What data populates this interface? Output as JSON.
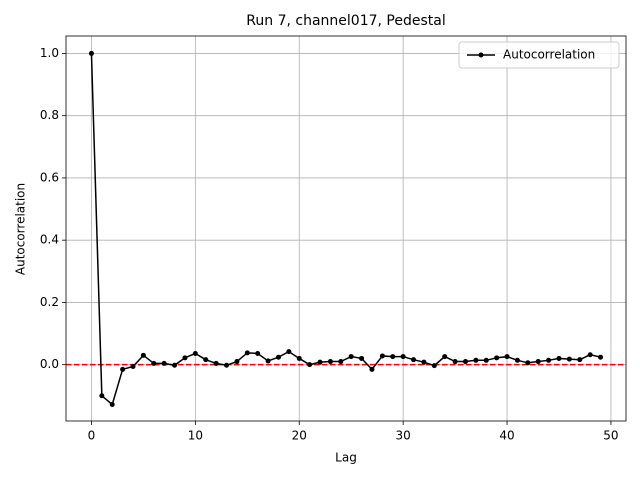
{
  "chart_data": {
    "type": "line",
    "title": "Run 7, channel017, Pedestal",
    "xlabel": "Lag",
    "ylabel": "Autocorrelation",
    "x": [
      0,
      1,
      2,
      3,
      4,
      5,
      6,
      7,
      8,
      9,
      10,
      11,
      12,
      13,
      14,
      15,
      16,
      17,
      18,
      19,
      20,
      21,
      22,
      23,
      24,
      25,
      26,
      27,
      28,
      29,
      30,
      31,
      32,
      33,
      34,
      35,
      36,
      37,
      38,
      39,
      40,
      41,
      42,
      43,
      44,
      45,
      46,
      47,
      48,
      49
    ],
    "series": [
      {
        "name": "Autocorrelation",
        "color": "#000000",
        "values": [
          1.0,
          -0.1,
          -0.128,
          -0.015,
          -0.006,
          0.03,
          0.004,
          0.004,
          -0.002,
          0.022,
          0.036,
          0.016,
          0.004,
          -0.002,
          0.01,
          0.038,
          0.036,
          0.012,
          0.024,
          0.042,
          0.02,
          0.0,
          0.008,
          0.01,
          0.01,
          0.026,
          0.02,
          -0.015,
          0.028,
          0.026,
          0.026,
          0.016,
          0.008,
          -0.003,
          0.026,
          0.01,
          0.01,
          0.014,
          0.014,
          0.022,
          0.026,
          0.014,
          0.006,
          0.01,
          0.014,
          0.02,
          0.018,
          0.016,
          0.032,
          0.024
        ]
      }
    ],
    "xlim": [
      -2.45,
      51.45
    ],
    "xticks": [
      0,
      10,
      20,
      30,
      40,
      50
    ],
    "ylim": [
      -0.181,
      1.056
    ],
    "yticks": [
      {
        "value": 0,
        "label": "0.0"
      },
      {
        "value": 0.2,
        "label": "0.2"
      },
      {
        "value": 0.4,
        "label": "0.4"
      },
      {
        "value": 0.6,
        "label": "0.6"
      },
      {
        "value": 0.8,
        "label": "0.8"
      },
      {
        "value": 1,
        "label": "1.0"
      }
    ],
    "grid": true,
    "legend": "upper-right",
    "hline": {
      "value": 0,
      "color": "#ff0000"
    }
  }
}
